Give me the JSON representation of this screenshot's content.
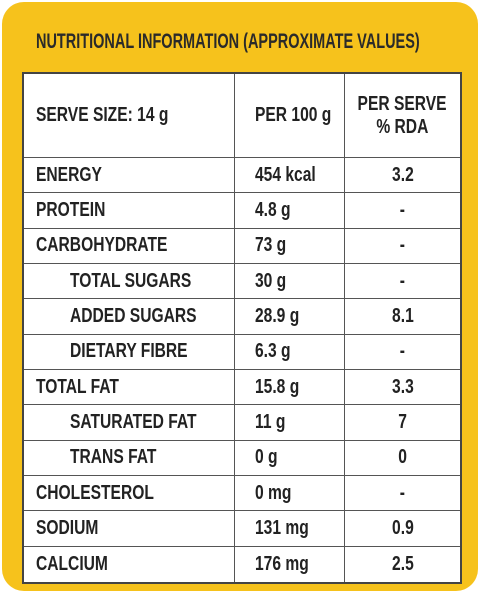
{
  "header": {
    "title": "NUTRITIONAL INFORMATION (APPROXIMATE VALUES)"
  },
  "table": {
    "header": [
      "SERVE SIZE: 14 g",
      "PER 100 g",
      [
        "PER SERVE",
        "% RDA"
      ]
    ],
    "rows": [
      {
        "name": "ENERGY",
        "per_100g": "454 kcal",
        "rda": "3.2",
        "sub": false
      },
      {
        "name": "PROTEIN",
        "per_100g": "4.8 g",
        "rda": "-",
        "sub": false
      },
      {
        "name": "CARBOHYDRATE",
        "per_100g": "73 g",
        "rda": "-",
        "sub": false
      },
      {
        "name": "TOTAL SUGARS",
        "per_100g": "30 g",
        "rda": "-",
        "sub": true
      },
      {
        "name": "ADDED SUGARS",
        "per_100g": "28.9 g",
        "rda": "8.1",
        "sub": true
      },
      {
        "name": "DIETARY FIBRE",
        "per_100g": "6.3 g",
        "rda": "-",
        "sub": true
      },
      {
        "name": "TOTAL FAT",
        "per_100g": "15.8 g",
        "rda": "3.3",
        "sub": false
      },
      {
        "name": "SATURATED FAT",
        "per_100g": "11 g",
        "rda": "7",
        "sub": true
      },
      {
        "name": "TRANS FAT",
        "per_100g": "0 g",
        "rda": "0",
        "sub": true
      },
      {
        "name": "CHOLESTEROL",
        "per_100g": "0 mg",
        "rda": "-",
        "sub": false
      },
      {
        "name": "SODIUM",
        "per_100g": "131 mg",
        "rda": "0.9",
        "sub": false
      },
      {
        "name": "CALCIUM",
        "per_100g": "176 mg",
        "rda": "2.5",
        "sub": false
      }
    ]
  }
}
